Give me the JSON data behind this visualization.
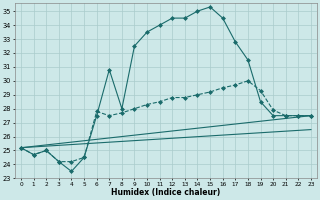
{
  "xlabel": "Humidex (Indice chaleur)",
  "bg_color": "#cde8e8",
  "grid_color": "#aacccc",
  "line_color": "#1a6b6b",
  "xlim": [
    -0.5,
    23.5
  ],
  "ylim": [
    23,
    35.6
  ],
  "yticks": [
    23,
    24,
    25,
    26,
    27,
    28,
    29,
    30,
    31,
    32,
    33,
    34,
    35
  ],
  "xticks": [
    0,
    1,
    2,
    3,
    4,
    5,
    6,
    7,
    8,
    9,
    10,
    11,
    12,
    13,
    14,
    15,
    16,
    17,
    18,
    19,
    20,
    21,
    22,
    23
  ],
  "series": [
    {
      "x": [
        0,
        1,
        2,
        3,
        4,
        5,
        6,
        7,
        8,
        9,
        10,
        11,
        12,
        13,
        14,
        15,
        16,
        17,
        18,
        19,
        20,
        21,
        22,
        23
      ],
      "y": [
        25.2,
        24.7,
        25.0,
        24.2,
        23.5,
        24.5,
        27.5,
        30.8,
        28.0,
        32.5,
        33.5,
        34.0,
        34.5,
        34.5,
        35.0,
        35.3,
        34.5,
        32.8,
        31.5,
        28.5,
        27.5,
        27.5,
        27.5,
        27.5
      ],
      "marker": true,
      "linestyle": "-"
    },
    {
      "x": [
        0,
        1,
        2,
        3,
        4,
        5,
        6,
        7,
        8,
        9,
        10,
        11,
        12,
        13,
        14,
        15,
        16,
        17,
        18,
        19,
        20,
        21,
        22,
        23
      ],
      "y": [
        25.2,
        24.7,
        25.0,
        24.2,
        24.2,
        24.5,
        27.8,
        27.5,
        27.7,
        28.0,
        28.3,
        28.5,
        28.8,
        28.8,
        29.0,
        29.2,
        29.5,
        29.7,
        30.0,
        29.3,
        27.9,
        27.5,
        27.5,
        27.5
      ],
      "marker": true,
      "linestyle": "--"
    },
    {
      "x": [
        0,
        23
      ],
      "y": [
        25.2,
        27.5
      ],
      "marker": false,
      "linestyle": "-"
    },
    {
      "x": [
        0,
        23
      ],
      "y": [
        25.2,
        26.5
      ],
      "marker": false,
      "linestyle": "-"
    }
  ]
}
